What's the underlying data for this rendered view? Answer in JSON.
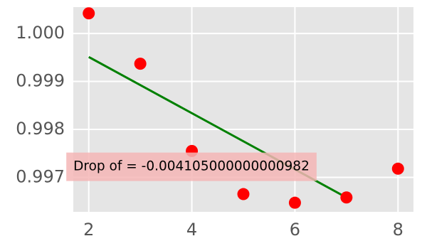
{
  "chart_data": {
    "type": "scatter",
    "title": "",
    "xlabel": "",
    "ylabel": "",
    "xlim": [
      1.7,
      8.3
    ],
    "ylim": [
      0.99628,
      1.00055
    ],
    "xticks": [
      2,
      4,
      6,
      8
    ],
    "xtick_labels": [
      "2",
      "4",
      "6",
      "8"
    ],
    "yticks": [
      0.997,
      0.998,
      0.999,
      1.0
    ],
    "ytick_labels": [
      "0.997",
      "0.998",
      "0.999",
      "1.000"
    ],
    "grid": true,
    "style": "ggplot",
    "series": [
      {
        "type": "scatter",
        "color": "#ff0000",
        "x": [
          2,
          3,
          4,
          5,
          6,
          7,
          8
        ],
        "y": [
          1.00042,
          0.99937,
          0.99755,
          0.99665,
          0.99647,
          0.99658,
          0.99718
        ]
      },
      {
        "type": "line",
        "color": "#008000",
        "x": [
          2,
          7
        ],
        "y": [
          0.99951,
          0.99658
        ]
      }
    ],
    "annotation": {
      "text": "Drop of = -0.004105000000000982",
      "x": 2.6,
      "y": 0.99722,
      "box_color": "#f4b6b6"
    }
  }
}
